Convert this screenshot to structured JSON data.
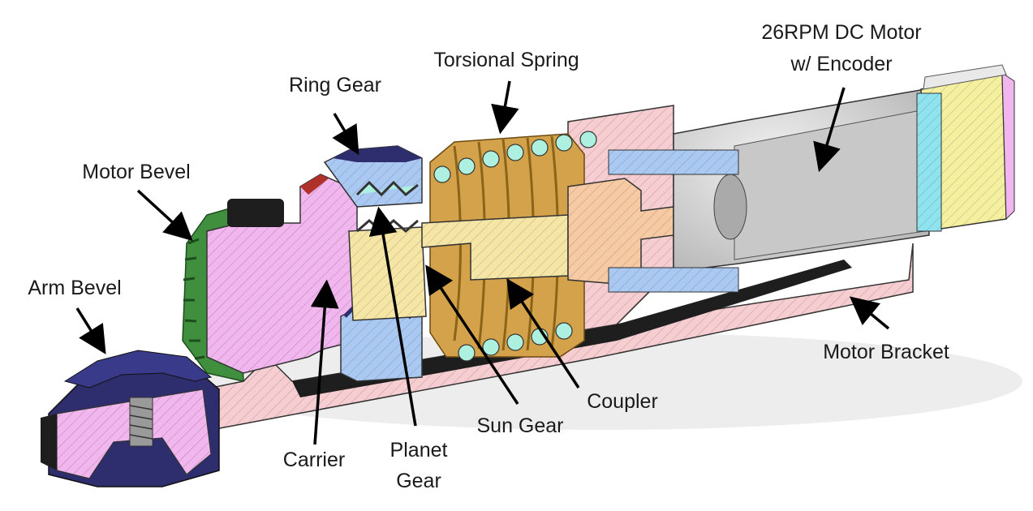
{
  "labels": {
    "torsional_spring": "Torsional Spring",
    "dc_motor_line1": "26RPM DC Motor",
    "dc_motor_line2": "w/ Encoder",
    "ring_gear": "Ring Gear",
    "motor_bevel": "Motor Bevel",
    "arm_bevel": "Arm Bevel",
    "motor_bracket": "Motor Bracket",
    "coupler": "Coupler",
    "sun_gear": "Sun Gear",
    "carrier": "Carrier",
    "planet_gear_line1": "Planet",
    "planet_gear_line2": "Gear"
  },
  "colors": {
    "bracket": "#f6cdd0",
    "carrier": "#f2b6ee",
    "ring_gear": "#aac9f2",
    "sun_gear": "#f5e6a6",
    "coupler": "#f6caa2",
    "spring": "#d4a24a",
    "spring_section": "#aef0df",
    "motor_shell": "#d9d9d9",
    "bevel_green": "#3f8f3f",
    "bevel_blue": "#2e2e6e",
    "black_part": "#1e1e1e",
    "encoder_cyan": "#8fe3ef",
    "encoder_yellow": "#f4f0a0"
  }
}
